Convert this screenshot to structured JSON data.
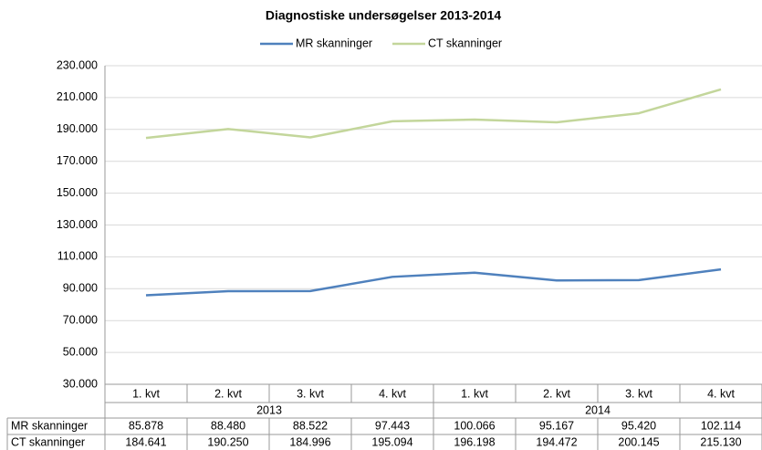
{
  "chart_data": {
    "type": "line",
    "title": "Diagnostiske undersøgelser 2013-2014",
    "categories": [
      "1. kvt",
      "2. kvt",
      "3. kvt",
      "4. kvt",
      "1. kvt",
      "2. kvt",
      "3. kvt",
      "4. kvt"
    ],
    "groups": [
      "2013",
      "2014"
    ],
    "series": [
      {
        "name": "MR skanninger",
        "color": "#4f81bd",
        "values": [
          85878,
          88480,
          88522,
          97443,
          100066,
          95167,
          95420,
          102114
        ],
        "value_labels": [
          "85.878",
          "88.480",
          "88.522",
          "97.443",
          "100.066",
          "95.167",
          "95.420",
          "102.114"
        ]
      },
      {
        "name": "CT skanninger",
        "color": "#c3d69b",
        "values": [
          184641,
          190250,
          184996,
          195094,
          196198,
          194472,
          200145,
          215130
        ],
        "value_labels": [
          "184.641",
          "190.250",
          "184.996",
          "195.094",
          "196.198",
          "194.472",
          "200.145",
          "215.130"
        ]
      }
    ],
    "ylim": [
      30000,
      230000
    ],
    "yticks": [
      {
        "value": 30000,
        "label": "30.000"
      },
      {
        "value": 50000,
        "label": "50.000"
      },
      {
        "value": 70000,
        "label": "70.000"
      },
      {
        "value": 90000,
        "label": "90.000"
      },
      {
        "value": 110000,
        "label": "110.000"
      },
      {
        "value": 130000,
        "label": "130.000"
      },
      {
        "value": 150000,
        "label": "150.000"
      },
      {
        "value": 170000,
        "label": "170.000"
      },
      {
        "value": 190000,
        "label": "190.000"
      },
      {
        "value": 210000,
        "label": "210.000"
      },
      {
        "value": 230000,
        "label": "230.000"
      }
    ],
    "grid": true,
    "legend": "top"
  }
}
